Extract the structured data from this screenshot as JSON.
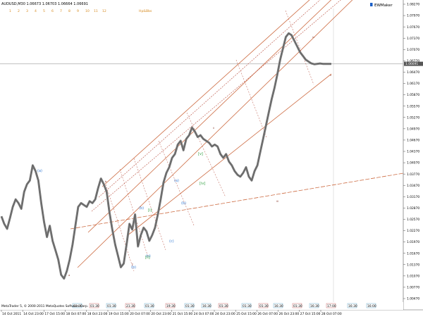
{
  "header": {
    "symbol_line": "AUDUSD,M30  1.06673 1.06703 1.06664 1.06691",
    "toolbar_items": [
      "1",
      "2",
      "3",
      "4",
      "5",
      "6",
      "7",
      "8",
      "9",
      "10",
      "11",
      "12",
      "Hp&Bbs"
    ],
    "brand": "EWMaker"
  },
  "chart_data": {
    "type": "line",
    "title": "AUDUSD,M30",
    "ohlc": {
      "open": 1.06673,
      "high": 1.06703,
      "low": 1.06664,
      "close": 1.06691
    },
    "current_price": 1.06691,
    "current_price_label": "1.06691",
    "y_ticks": [
      "1.08270",
      "1.07970",
      "1.07670",
      "1.07370",
      "1.07070",
      "1.06770",
      "1.06470",
      "1.06170",
      "1.05870",
      "1.05570",
      "1.05270",
      "1.04970",
      "1.04670",
      "1.04370",
      "1.04070",
      "1.03770",
      "1.03470",
      "1.03170",
      "1.02870",
      "1.02570",
      "1.02270",
      "1.01970",
      "1.01670",
      "1.01370",
      "1.01070",
      "1.00770",
      "1.00470"
    ],
    "x_ticks": [
      "14 Oct 2011",
      "14 Oct 23:00",
      "17 Oct 15:00",
      "18 Oct 07:00",
      "18 Oct 23:00",
      "19 Oct 15:00",
      "20 Oct 07:00",
      "20 Oct 23:00",
      "21 Oct 15:00",
      "24 Oct 07:00",
      "24 Oct 23:00",
      "25 Oct 15:00",
      "26 Oct 07:00",
      "26 Oct 23:00",
      "27 Oct 15:00",
      "28 Oct 07:00"
    ],
    "series": [
      {
        "x": [
          0,
          4,
          8,
          12,
          16,
          20,
          24,
          28,
          32,
          36,
          40,
          44,
          48,
          52,
          56,
          60,
          64,
          68,
          72,
          76,
          80,
          84,
          88,
          92,
          96,
          100,
          104,
          108,
          112,
          116,
          120,
          124,
          128,
          132,
          136,
          140,
          144,
          148,
          152,
          156,
          160,
          164,
          168,
          172,
          176,
          180,
          184,
          188,
          192,
          196,
          200,
          204,
          208,
          212,
          216,
          220,
          224,
          228,
          232,
          236,
          240,
          244,
          248,
          252,
          256,
          260,
          264,
          268,
          272,
          276,
          280,
          284,
          288,
          292,
          296,
          300,
          304,
          308,
          312,
          316,
          320,
          324,
          328,
          332,
          336,
          340,
          344,
          348,
          352,
          356,
          360,
          364,
          368,
          372,
          376,
          380,
          384,
          388,
          392,
          396,
          400,
          404,
          408,
          412,
          416,
          420,
          424,
          428,
          432,
          436,
          440,
          444,
          448,
          452,
          456,
          460,
          464
        ],
        "y": [
          1.0265,
          1.0245,
          1.0232,
          1.026,
          1.029,
          1.031,
          1.03,
          1.0285,
          1.033,
          1.035,
          1.036,
          1.04,
          1.0385,
          1.036,
          1.03,
          1.025,
          1.021,
          1.024,
          1.02,
          1.0175,
          1.015,
          1.011,
          1.01,
          1.012,
          1.015,
          1.019,
          1.024,
          1.029,
          1.03,
          1.0295,
          1.029,
          1.0305,
          1.03,
          1.031,
          1.034,
          1.0365,
          1.035,
          1.033,
          1.0275,
          1.023,
          1.019,
          1.016,
          1.013,
          1.014,
          1.019,
          1.0245,
          1.023,
          1.027,
          1.0185,
          1.0215,
          1.0235,
          1.0225,
          1.02,
          1.0215,
          1.0235,
          1.027,
          1.031,
          1.0355,
          1.038,
          1.0395,
          1.042,
          1.043,
          1.0455,
          1.0465,
          1.044,
          1.047,
          1.048,
          1.05,
          1.049,
          1.0475,
          1.048,
          1.047,
          1.0465,
          1.046,
          1.045,
          1.0455,
          1.045,
          1.043,
          1.042,
          1.043,
          1.041,
          1.04,
          1.0385,
          1.0375,
          1.037,
          1.038,
          1.0395,
          1.037,
          1.036,
          1.0385,
          1.04,
          1.0435,
          1.047,
          1.0505,
          1.054,
          1.0575,
          1.0605,
          1.064,
          1.068,
          1.071,
          1.074,
          1.075,
          1.0745,
          1.073,
          1.0715,
          1.07,
          1.069,
          1.068,
          1.0675,
          1.067,
          1.0668,
          1.0669,
          1.067,
          1.0669,
          1.0669,
          1.0669,
          1.0669
        ]
      }
    ],
    "wave_labels": {
      "blue": [
        "(a)",
        "(b)",
        "(c)",
        "(b)",
        "(a)",
        "(b)",
        "(c)"
      ],
      "green": [
        "[v]",
        "[iv]",
        "[ii]",
        "[i]"
      ],
      "small": [
        "a",
        "c",
        "b",
        "ii",
        "iii",
        "iv",
        "v"
      ]
    }
  },
  "status_bar": {
    "text": "MetaTrader 5, © 2000-2011 MetaQuotes Software Corp.",
    "time_badges": [
      "01:30",
      "01:30",
      "01:30",
      "21:30",
      "01:30",
      "19:30",
      "01:30",
      "16:30",
      "01:30",
      "01:30",
      "01:30",
      "16:30",
      "01:30",
      "16:30",
      "17:00",
      "16:30",
      "16:00"
    ]
  },
  "colors": {
    "candle": "#7f7f7f",
    "channel": "#cd6c43",
    "fib_dashed": "#b74b3b",
    "current_price_line": "#c0c0c0",
    "wave_blue": "#3a7fd5",
    "wave_green": "#2e9e3e",
    "toolbar_text": "#d68a1e"
  }
}
